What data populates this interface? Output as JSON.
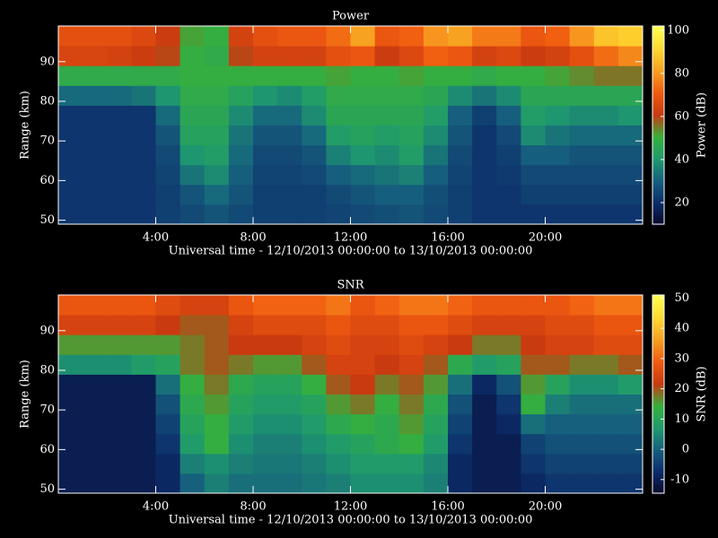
{
  "chart_data": [
    {
      "type": "heatmap",
      "title": "Power",
      "xlabel": "Universal time - 12/10/2013 00:00:00 to 13/10/2013 00:00:00",
      "ylabel": "Range (km)",
      "colorbar_label": "Power (dB)",
      "xlim": [
        0,
        24
      ],
      "ylim": [
        49,
        99
      ],
      "clim": [
        10,
        102
      ],
      "xticks": [
        {
          "value": 4,
          "label": "4:00"
        },
        {
          "value": 8,
          "label": "8:00"
        },
        {
          "value": 12,
          "label": "12:00"
        },
        {
          "value": 16,
          "label": "16:00"
        },
        {
          "value": 20,
          "label": "20:00"
        }
      ],
      "yticks": [
        50,
        60,
        70,
        80,
        90
      ],
      "cticks": [
        20,
        40,
        60,
        80,
        100
      ],
      "colormap": [
        "#080828",
        "#0c2c6a",
        "#16607e",
        "#1f9a6e",
        "#36b03c",
        "#c83a10",
        "#f05a10",
        "#f8a020",
        "#ffd830",
        "#ffff50"
      ],
      "x_bins": [
        0,
        1,
        2,
        3,
        4,
        5,
        6,
        7,
        8,
        9,
        10,
        11,
        12,
        13,
        14,
        15,
        16,
        17,
        18,
        19,
        20,
        21,
        22,
        23,
        24
      ],
      "y_bins": [
        49,
        54,
        59,
        64,
        69,
        74,
        79,
        84,
        89,
        94,
        99
      ],
      "values": [
        [
          22,
          22,
          22,
          22,
          24,
          26,
          28,
          26,
          24,
          24,
          24,
          25,
          26,
          27,
          28,
          26,
          24,
          22,
          22,
          22,
          22,
          22,
          22,
          22
        ],
        [
          22,
          22,
          22,
          22,
          24,
          28,
          32,
          28,
          24,
          24,
          24,
          26,
          28,
          30,
          30,
          27,
          24,
          22,
          22,
          24,
          24,
          24,
          24,
          24
        ],
        [
          22,
          22,
          22,
          22,
          25,
          34,
          38,
          30,
          25,
          25,
          26,
          30,
          32,
          34,
          36,
          30,
          25,
          22,
          23,
          26,
          26,
          26,
          26,
          26
        ],
        [
          22,
          22,
          22,
          22,
          26,
          40,
          42,
          32,
          26,
          26,
          28,
          36,
          40,
          38,
          42,
          34,
          26,
          22,
          24,
          30,
          30,
          28,
          28,
          28
        ],
        [
          22,
          22,
          22,
          22,
          28,
          44,
          44,
          34,
          28,
          28,
          32,
          42,
          44,
          42,
          44,
          38,
          28,
          22,
          26,
          38,
          34,
          32,
          32,
          32
        ],
        [
          22,
          22,
          22,
          22,
          32,
          46,
          46,
          38,
          32,
          32,
          38,
          46,
          46,
          46,
          46,
          42,
          30,
          24,
          30,
          42,
          40,
          38,
          38,
          40
        ],
        [
          32,
          32,
          32,
          34,
          40,
          48,
          48,
          44,
          40,
          38,
          42,
          48,
          48,
          48,
          48,
          46,
          38,
          34,
          38,
          46,
          46,
          46,
          46,
          46
        ],
        [
          48,
          48,
          48,
          48,
          48,
          50,
          50,
          50,
          50,
          50,
          50,
          52,
          50,
          50,
          52,
          50,
          50,
          48,
          50,
          50,
          52,
          54,
          56,
          56
        ],
        [
          65,
          65,
          64,
          62,
          60,
          50,
          48,
          60,
          64,
          64,
          64,
          68,
          70,
          62,
          66,
          72,
          70,
          64,
          66,
          62,
          64,
          68,
          74,
          78
        ],
        [
          68,
          68,
          68,
          66,
          62,
          52,
          50,
          64,
          68,
          70,
          70,
          74,
          82,
          70,
          72,
          80,
          82,
          76,
          76,
          70,
          72,
          80,
          88,
          90
        ]
      ]
    },
    {
      "type": "heatmap",
      "title": "SNR",
      "xlabel": "Universal time - 12/10/2013 00:00:00 to 13/10/2013 00:00:00",
      "ylabel": "Range (km)",
      "colorbar_label": "SNR (dB)",
      "xlim": [
        0,
        24
      ],
      "ylim": [
        49,
        99
      ],
      "clim": [
        -14.5,
        51
      ],
      "xticks": [
        {
          "value": 4,
          "label": "4:00"
        },
        {
          "value": 8,
          "label": "8:00"
        },
        {
          "value": 12,
          "label": "12:00"
        },
        {
          "value": 16,
          "label": "16:00"
        },
        {
          "value": 20,
          "label": "20:00"
        }
      ],
      "yticks": [
        50,
        60,
        70,
        80,
        90
      ],
      "cticks": [
        -10,
        0,
        10,
        20,
        30,
        40,
        50
      ],
      "colormap": [
        "#080828",
        "#0c2c6a",
        "#16607e",
        "#1f9a6e",
        "#36b03c",
        "#c83a10",
        "#f05a10",
        "#f8a020",
        "#ffd830",
        "#ffff50"
      ],
      "x_bins": [
        0,
        1,
        2,
        3,
        4,
        5,
        6,
        7,
        8,
        9,
        10,
        11,
        12,
        13,
        14,
        15,
        16,
        17,
        18,
        19,
        20,
        21,
        22,
        23,
        24
      ],
      "y_bins": [
        49,
        54,
        59,
        64,
        69,
        74,
        79,
        84,
        89,
        94,
        99
      ],
      "values": [
        [
          -10,
          -10,
          -10,
          -10,
          -8,
          0,
          4,
          2,
          2,
          2,
          3,
          4,
          6,
          6,
          6,
          4,
          -8,
          -10,
          -10,
          -8,
          -6,
          -6,
          -6,
          -6
        ],
        [
          -10,
          -10,
          -10,
          -10,
          -8,
          4,
          6,
          4,
          3,
          3,
          4,
          6,
          8,
          8,
          8,
          5,
          -8,
          -10,
          -10,
          -6,
          -4,
          -4,
          -4,
          -4
        ],
        [
          -10,
          -10,
          -10,
          -10,
          -6,
          8,
          14,
          6,
          4,
          4,
          6,
          8,
          10,
          12,
          14,
          8,
          -6,
          -10,
          -10,
          -4,
          -2,
          -2,
          -2,
          -2
        ],
        [
          -10,
          -10,
          -10,
          -10,
          -4,
          10,
          14,
          8,
          6,
          6,
          8,
          12,
          14,
          12,
          16,
          10,
          -4,
          -10,
          -8,
          2,
          0,
          0,
          0,
          0
        ],
        [
          -10,
          -10,
          -10,
          -10,
          -2,
          12,
          16,
          10,
          8,
          8,
          10,
          16,
          18,
          14,
          18,
          12,
          -2,
          -10,
          -6,
          14,
          4,
          2,
          2,
          2
        ],
        [
          -10,
          -10,
          -10,
          -10,
          2,
          14,
          18,
          12,
          10,
          10,
          14,
          20,
          22,
          18,
          20,
          16,
          2,
          -8,
          -2,
          16,
          10,
          6,
          6,
          8
        ],
        [
          6,
          6,
          6,
          8,
          10,
          18,
          20,
          18,
          16,
          16,
          20,
          24,
          24,
          22,
          24,
          20,
          12,
          8,
          10,
          20,
          20,
          18,
          18,
          20
        ],
        [
          16,
          16,
          16,
          16,
          16,
          18,
          20,
          22,
          22,
          22,
          24,
          26,
          24,
          24,
          26,
          24,
          22,
          18,
          18,
          22,
          24,
          24,
          26,
          26
        ],
        [
          24,
          24,
          24,
          24,
          22,
          20,
          20,
          24,
          26,
          26,
          26,
          28,
          26,
          26,
          28,
          28,
          26,
          24,
          24,
          24,
          26,
          26,
          28,
          28
        ],
        [
          28,
          28,
          28,
          28,
          26,
          24,
          24,
          28,
          30,
          30,
          30,
          32,
          28,
          30,
          32,
          32,
          30,
          28,
          28,
          28,
          28,
          30,
          32,
          32
        ]
      ]
    }
  ]
}
